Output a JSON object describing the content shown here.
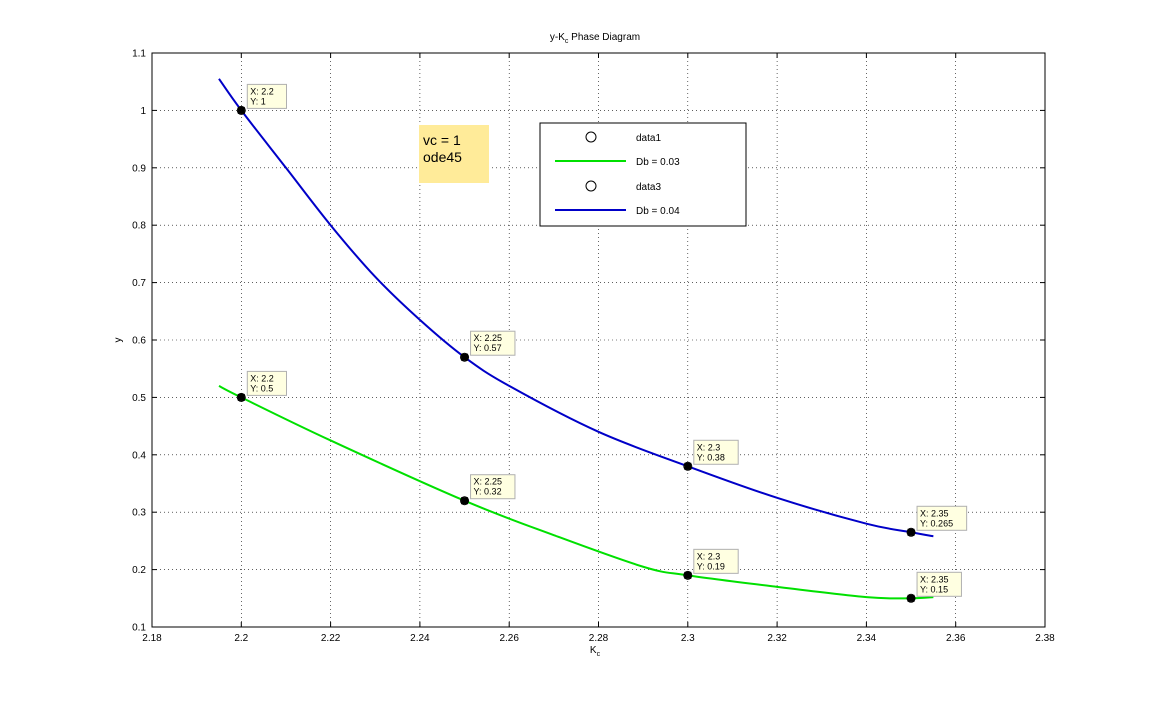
{
  "chart_data": {
    "type": "line",
    "title": {
      "main": "y-K",
      "sub": "c",
      "rest": " Phase Diagram"
    },
    "xlabel": {
      "main": "K",
      "sub": "c"
    },
    "ylabel": "y",
    "xlim": [
      2.18,
      2.38
    ],
    "ylim": [
      0.1,
      1.1
    ],
    "xticks": [
      2.18,
      2.2,
      2.22,
      2.24,
      2.26,
      2.28,
      2.3,
      2.32,
      2.34,
      2.36,
      2.38
    ],
    "yticks": [
      0.1,
      0.2,
      0.3,
      0.4,
      0.5,
      0.6,
      0.7,
      0.8,
      0.9,
      1,
      1.1
    ],
    "grid": true,
    "legend_position": "top-center",
    "series": [
      {
        "name": "data1",
        "marker": "circle",
        "line": false,
        "color": "#000000",
        "x": [
          2.2,
          2.25,
          2.3,
          2.35
        ],
        "y": [
          0.5,
          0.32,
          0.19,
          0.15
        ]
      },
      {
        "name": "Db = 0.03",
        "line": true,
        "color": "#00e000",
        "x": [
          2.195,
          2.2,
          2.22,
          2.25,
          2.27,
          2.29,
          2.3,
          2.32,
          2.34,
          2.35,
          2.355
        ],
        "y": [
          0.52,
          0.5,
          0.425,
          0.32,
          0.26,
          0.205,
          0.19,
          0.17,
          0.152,
          0.15,
          0.152
        ]
      },
      {
        "name": "data3",
        "marker": "circle",
        "line": false,
        "color": "#000000",
        "x": [
          2.2,
          2.25,
          2.3,
          2.35
        ],
        "y": [
          1.0,
          0.57,
          0.38,
          0.265
        ]
      },
      {
        "name": "Db = 0.04",
        "line": true,
        "color": "#0000c8",
        "x": [
          2.195,
          2.2,
          2.21,
          2.22,
          2.23,
          2.24,
          2.25,
          2.26,
          2.28,
          2.3,
          2.32,
          2.34,
          2.35,
          2.355
        ],
        "y": [
          1.055,
          1.0,
          0.9,
          0.8,
          0.71,
          0.635,
          0.57,
          0.52,
          0.44,
          0.38,
          0.325,
          0.28,
          0.265,
          0.258
        ]
      }
    ],
    "datatips": [
      {
        "x": 2.2,
        "y": 1.0,
        "label_x": "X: 2.2",
        "label_y": "Y: 1"
      },
      {
        "x": 2.2,
        "y": 0.5,
        "label_x": "X: 2.2",
        "label_y": "Y: 0.5"
      },
      {
        "x": 2.25,
        "y": 0.57,
        "label_x": "X: 2.25",
        "label_y": "Y: 0.57"
      },
      {
        "x": 2.25,
        "y": 0.32,
        "label_x": "X: 2.25",
        "label_y": "Y: 0.32"
      },
      {
        "x": 2.3,
        "y": 0.38,
        "label_x": "X: 2.3",
        "label_y": "Y: 0.38"
      },
      {
        "x": 2.3,
        "y": 0.19,
        "label_x": "X: 2.3",
        "label_y": "Y: 0.19"
      },
      {
        "x": 2.35,
        "y": 0.265,
        "label_x": "X: 2.35",
        "label_y": "Y: 0.265"
      },
      {
        "x": 2.35,
        "y": 0.15,
        "label_x": "X: 2.35",
        "label_y": "Y: 0.15"
      }
    ],
    "annotation": {
      "lines": [
        "vc = 1",
        "ode45"
      ],
      "background": "#ffeb99"
    }
  }
}
